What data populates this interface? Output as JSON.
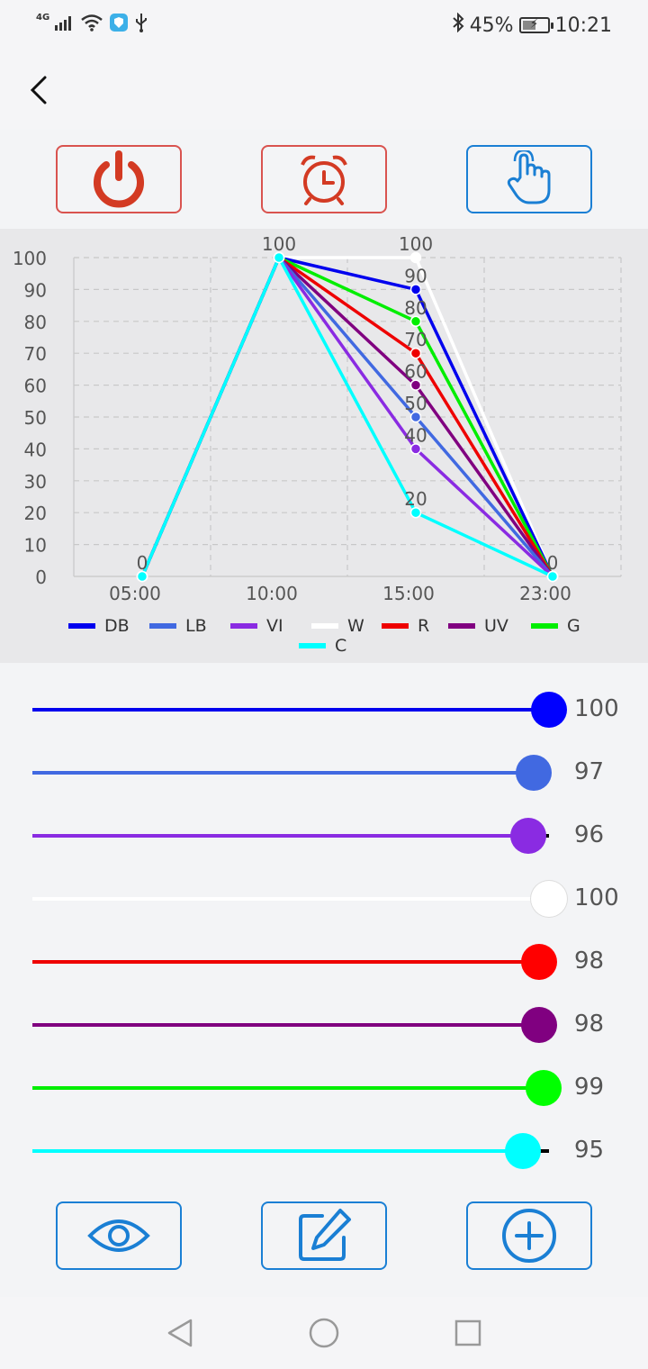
{
  "status_bar": {
    "network": "4G",
    "battery_percent": "45%",
    "time": "10:21",
    "icons": [
      "signal-icon",
      "wifi-icon",
      "shield-app-icon",
      "usb-icon",
      "bluetooth-icon",
      "battery-charging-icon"
    ]
  },
  "header": {
    "back_icon": "chevron-left-icon"
  },
  "top_buttons": [
    {
      "icon": "power-icon",
      "color": "#d33a23"
    },
    {
      "icon": "alarm-clock-icon",
      "color": "#d33a23"
    },
    {
      "icon": "hand-pointer-icon",
      "color": "#1a7fd4"
    }
  ],
  "chart_data": {
    "type": "line",
    "categories": [
      "05:00",
      "10:00",
      "15:00",
      "23:00"
    ],
    "ylim": [
      0,
      100
    ],
    "yticks": [
      "100",
      "90",
      "80",
      "70",
      "60",
      "50",
      "40",
      "30",
      "20",
      "10",
      "0"
    ],
    "grid": true,
    "legend_position": "bottom",
    "series": [
      {
        "name": "DB",
        "color": "#0000ee",
        "values": [
          0,
          100,
          90,
          0
        ]
      },
      {
        "name": "LB",
        "color": "#4169e1",
        "values": [
          0,
          100,
          50,
          0
        ]
      },
      {
        "name": "VI",
        "color": "#8a2be2",
        "values": [
          0,
          100,
          40,
          0
        ]
      },
      {
        "name": "W",
        "color": "#ffffff",
        "values": [
          0,
          100,
          100,
          0
        ]
      },
      {
        "name": "R",
        "color": "#ee0000",
        "values": [
          0,
          100,
          70,
          0
        ]
      },
      {
        "name": "UV",
        "color": "#800080",
        "values": [
          0,
          100,
          60,
          0
        ]
      },
      {
        "name": "G",
        "color": "#00ee00",
        "values": [
          0,
          100,
          80,
          0
        ]
      },
      {
        "name": "C",
        "color": "#00ffff",
        "values": [
          0,
          100,
          20,
          0
        ]
      }
    ],
    "point_labels_at_15": [
      "100",
      "90",
      "80",
      "70",
      "60",
      "50",
      "40",
      "20"
    ],
    "label_0": "0",
    "label_100": "100"
  },
  "sliders": [
    {
      "channel": "DB",
      "color": "#0000ee",
      "thumb": "#0000ff",
      "value": 100,
      "label": "100"
    },
    {
      "channel": "LB",
      "color": "#4169e1",
      "thumb": "#4169e1",
      "value": 97,
      "label": "97"
    },
    {
      "channel": "VI",
      "color": "#8a2be2",
      "thumb": "#8a2be2",
      "value": 96,
      "label": "96"
    },
    {
      "channel": "W",
      "color": "#ffffff",
      "thumb": "#ffffff",
      "value": 100,
      "label": "100"
    },
    {
      "channel": "R",
      "color": "#ee0000",
      "thumb": "#ff0000",
      "value": 98,
      "label": "98"
    },
    {
      "channel": "UV",
      "color": "#800080",
      "thumb": "#800080",
      "value": 98,
      "label": "98"
    },
    {
      "channel": "G",
      "color": "#00ee00",
      "thumb": "#00ff00",
      "value": 99,
      "label": "99"
    },
    {
      "channel": "C",
      "color": "#00ffff",
      "thumb": "#00ffff",
      "value": 95,
      "label": "95"
    }
  ],
  "bottom_buttons": [
    {
      "icon": "eye-icon"
    },
    {
      "icon": "edit-icon"
    },
    {
      "icon": "add-circle-icon"
    }
  ],
  "nav_bar": {
    "icons": [
      "back-triangle-icon",
      "home-circle-icon",
      "recents-square-icon"
    ]
  },
  "colors": {
    "accent_blue": "#1a7fd4",
    "accent_red": "#d33a23",
    "chart_bg": "#e8e8ea",
    "page_bg": "#f3f4f6"
  }
}
